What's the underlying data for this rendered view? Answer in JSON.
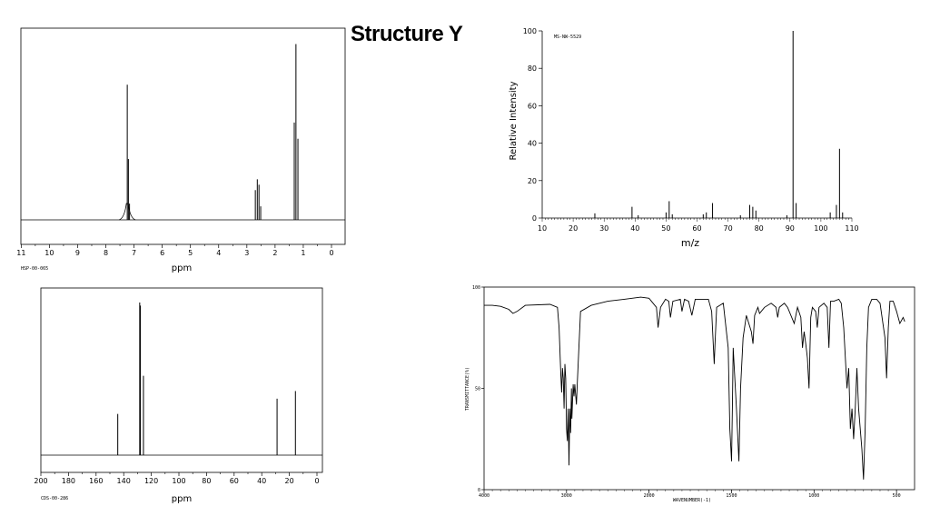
{
  "page_title": "Structure Y",
  "chart_data": [
    {
      "id": "hnmr",
      "type": "line",
      "xlabel": "ppm",
      "code": "HSP-00-065",
      "xlim": [
        11,
        0
      ],
      "ticks": [
        11,
        10,
        9,
        8,
        7,
        6,
        5,
        4,
        3,
        2,
        1,
        0
      ],
      "peaks": [
        {
          "x": 7.24,
          "y": 1.0
        },
        {
          "x": 7.2,
          "y": 0.45
        },
        {
          "x": 7.16,
          "y": 0.12
        },
        {
          "x": 2.7,
          "y": 0.22
        },
        {
          "x": 2.63,
          "y": 0.3
        },
        {
          "x": 2.57,
          "y": 0.26
        },
        {
          "x": 2.51,
          "y": 0.1
        },
        {
          "x": 1.32,
          "y": 0.72
        },
        {
          "x": 1.26,
          "y": 1.3
        },
        {
          "x": 1.19,
          "y": 0.6
        }
      ]
    },
    {
      "id": "ms",
      "type": "bar",
      "xlabel": "m/z",
      "ylabel": "Relative Intensity",
      "code": "MS-NW-5529",
      "xlim": [
        10,
        110
      ],
      "ylim": [
        0,
        100
      ],
      "xticks": [
        10,
        20,
        30,
        40,
        50,
        60,
        70,
        80,
        90,
        100,
        110
      ],
      "yticks": [
        0,
        20,
        40,
        60,
        80,
        100
      ],
      "peaks": [
        [
          27,
          2.5
        ],
        [
          39,
          6
        ],
        [
          41,
          1.5
        ],
        [
          50,
          3
        ],
        [
          51,
          9
        ],
        [
          52,
          2
        ],
        [
          62,
          2
        ],
        [
          63,
          3
        ],
        [
          65,
          8
        ],
        [
          74,
          1.5
        ],
        [
          77,
          7
        ],
        [
          78,
          6
        ],
        [
          79,
          4
        ],
        [
          89,
          1.5
        ],
        [
          91,
          100
        ],
        [
          92,
          8
        ],
        [
          103,
          3
        ],
        [
          105,
          7
        ],
        [
          106,
          37
        ],
        [
          107,
          3
        ]
      ]
    },
    {
      "id": "cnmr",
      "type": "line",
      "xlabel": "ppm",
      "code": "CDS-00-286",
      "xlim": [
        200,
        0
      ],
      "ticks": [
        200,
        180,
        160,
        140,
        120,
        100,
        80,
        60,
        40,
        20,
        0
      ],
      "peaks": [
        {
          "x": 144.3,
          "y": 0.27
        },
        {
          "x": 128.4,
          "y": 1.0
        },
        {
          "x": 127.9,
          "y": 0.98
        },
        {
          "x": 125.7,
          "y": 0.52
        },
        {
          "x": 28.9,
          "y": 0.37
        },
        {
          "x": 15.6,
          "y": 0.42
        }
      ]
    },
    {
      "id": "ir",
      "type": "line",
      "xlabel": "WAVENUMBER(-1)",
      "ylabel": "TRANSMITTANCE(%)",
      "xlim": [
        4000,
        450
      ],
      "ylim": [
        0,
        100
      ],
      "xticks": [
        4000,
        3000,
        2000,
        1500,
        1000,
        500
      ],
      "yticks": [
        0,
        50,
        100
      ],
      "points": [
        [
          4000,
          91
        ],
        [
          3900,
          91
        ],
        [
          3800,
          90.5
        ],
        [
          3700,
          89
        ],
        [
          3650,
          87
        ],
        [
          3600,
          88
        ],
        [
          3500,
          91
        ],
        [
          3200,
          91.5
        ],
        [
          3110,
          90
        ],
        [
          3090,
          80
        ],
        [
          3070,
          58
        ],
        [
          3060,
          48
        ],
        [
          3050,
          60
        ],
        [
          3040,
          55
        ],
        [
          3030,
          40
        ],
        [
          3020,
          62
        ],
        [
          3010,
          55
        ],
        [
          3000,
          30
        ],
        [
          2990,
          24
        ],
        [
          2980,
          40
        ],
        [
          2970,
          12
        ],
        [
          2960,
          40
        ],
        [
          2950,
          28
        ],
        [
          2940,
          50
        ],
        [
          2935,
          35
        ],
        [
          2920,
          52
        ],
        [
          2910,
          46
        ],
        [
          2900,
          52
        ],
        [
          2880,
          42
        ],
        [
          2870,
          52
        ],
        [
          2850,
          70
        ],
        [
          2830,
          88
        ],
        [
          2700,
          91
        ],
        [
          2500,
          93
        ],
        [
          2300,
          94
        ],
        [
          2100,
          95
        ],
        [
          2000,
          94.5
        ],
        [
          1955,
          90
        ],
        [
          1945,
          80
        ],
        [
          1930,
          90
        ],
        [
          1900,
          94
        ],
        [
          1880,
          93
        ],
        [
          1870,
          85
        ],
        [
          1855,
          93
        ],
        [
          1810,
          94
        ],
        [
          1800,
          88
        ],
        [
          1785,
          94
        ],
        [
          1760,
          93
        ],
        [
          1740,
          86
        ],
        [
          1720,
          94
        ],
        [
          1640,
          94
        ],
        [
          1620,
          88
        ],
        [
          1605,
          62
        ],
        [
          1600,
          72
        ],
        [
          1590,
          90
        ],
        [
          1550,
          92
        ],
        [
          1520,
          70
        ],
        [
          1510,
          30
        ],
        [
          1500,
          14
        ],
        [
          1495,
          40
        ],
        [
          1490,
          70
        ],
        [
          1470,
          40
        ],
        [
          1455,
          14
        ],
        [
          1445,
          50
        ],
        [
          1430,
          75
        ],
        [
          1410,
          86
        ],
        [
          1380,
          78
        ],
        [
          1370,
          72
        ],
        [
          1360,
          86
        ],
        [
          1340,
          90
        ],
        [
          1330,
          87
        ],
        [
          1300,
          90
        ],
        [
          1260,
          92
        ],
        [
          1230,
          90
        ],
        [
          1220,
          85
        ],
        [
          1210,
          90
        ],
        [
          1180,
          92
        ],
        [
          1160,
          90
        ],
        [
          1120,
          82
        ],
        [
          1100,
          90
        ],
        [
          1080,
          85
        ],
        [
          1070,
          70
        ],
        [
          1060,
          78
        ],
        [
          1050,
          72
        ],
        [
          1040,
          65
        ],
        [
          1030,
          50
        ],
        [
          1020,
          85
        ],
        [
          1010,
          90
        ],
        [
          990,
          88
        ],
        [
          980,
          80
        ],
        [
          970,
          90
        ],
        [
          940,
          92
        ],
        [
          920,
          90
        ],
        [
          910,
          70
        ],
        [
          900,
          93
        ],
        [
          880,
          93
        ],
        [
          850,
          94
        ],
        [
          835,
          92
        ],
        [
          820,
          80
        ],
        [
          800,
          50
        ],
        [
          790,
          60
        ],
        [
          780,
          30
        ],
        [
          770,
          40
        ],
        [
          760,
          25
        ],
        [
          750,
          40
        ],
        [
          740,
          60
        ],
        [
          730,
          40
        ],
        [
          710,
          20
        ],
        [
          700,
          5
        ],
        [
          690,
          30
        ],
        [
          680,
          70
        ],
        [
          670,
          90
        ],
        [
          650,
          94
        ],
        [
          620,
          94
        ],
        [
          600,
          92
        ],
        [
          570,
          75
        ],
        [
          560,
          55
        ],
        [
          550,
          80
        ],
        [
          540,
          93
        ],
        [
          520,
          93
        ],
        [
          500,
          88
        ],
        [
          480,
          82
        ],
        [
          460,
          85
        ],
        [
          450,
          83
        ]
      ]
    }
  ]
}
